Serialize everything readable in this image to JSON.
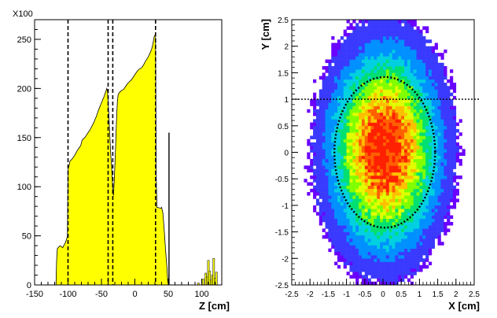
{
  "chart_data": [
    {
      "type": "histogram",
      "multiplier_label": "X100",
      "xlabel": "Z [cm]",
      "ylabel": "",
      "xlim": [
        -150,
        130
      ],
      "ylim": [
        0,
        270
      ],
      "x_ticks": [
        -150,
        -100,
        -50,
        0,
        50,
        100
      ],
      "y_ticks": [
        0,
        50,
        100,
        150,
        200,
        250
      ],
      "fill_color": "#ffff00",
      "outline_color": "#000000",
      "profile": [
        [
          -118,
          0
        ],
        [
          -117,
          25
        ],
        [
          -116,
          37
        ],
        [
          -112,
          40
        ],
        [
          -108,
          38
        ],
        [
          -104,
          43
        ],
        [
          -101,
          49
        ],
        [
          -100,
          117
        ],
        [
          -97,
          126
        ],
        [
          -93,
          129
        ],
        [
          -90,
          132
        ],
        [
          -87,
          136
        ],
        [
          -84,
          139
        ],
        [
          -81,
          142
        ],
        [
          -79,
          147
        ],
        [
          -77,
          149
        ],
        [
          -75,
          150
        ],
        [
          -73,
          152
        ],
        [
          -70,
          155
        ],
        [
          -67,
          158
        ],
        [
          -64,
          162
        ],
        [
          -61,
          166
        ],
        [
          -58,
          171
        ],
        [
          -55,
          177
        ],
        [
          -52,
          182
        ],
        [
          -49,
          187
        ],
        [
          -46,
          192
        ],
        [
          -44,
          196
        ],
        [
          -42,
          200
        ],
        [
          -41,
          197
        ],
        [
          -40,
          187
        ],
        [
          -39,
          175
        ],
        [
          -38,
          160
        ],
        [
          -37,
          145
        ],
        [
          -36,
          132
        ],
        [
          -35,
          122
        ],
        [
          -34,
          110
        ],
        [
          -33,
          96
        ],
        [
          -32,
          91
        ],
        [
          -31,
          104
        ],
        [
          -30,
          120
        ],
        [
          -29,
          138
        ],
        [
          -28,
          158
        ],
        [
          -27,
          176
        ],
        [
          -26,
          188
        ],
        [
          -25,
          194
        ],
        [
          -23,
          196
        ],
        [
          -20,
          198
        ],
        [
          -17,
          199
        ],
        [
          -14,
          202
        ],
        [
          -11,
          205
        ],
        [
          -8,
          207
        ],
        [
          -5,
          209
        ],
        [
          -2,
          212
        ],
        [
          1,
          215
        ],
        [
          4,
          218
        ],
        [
          7,
          220
        ],
        [
          10,
          221
        ],
        [
          13,
          224
        ],
        [
          16,
          228
        ],
        [
          19,
          231
        ],
        [
          22,
          235
        ],
        [
          25,
          240
        ],
        [
          27,
          245
        ],
        [
          29,
          253
        ],
        [
          31,
          255
        ],
        [
          32,
          110
        ],
        [
          33,
          79
        ],
        [
          39,
          78
        ],
        [
          40,
          79
        ],
        [
          42,
          73
        ],
        [
          44,
          55
        ],
        [
          46,
          35
        ],
        [
          48,
          18
        ],
        [
          49,
          5
        ],
        [
          50,
          0
        ]
      ],
      "spikes": [
        [
          51,
          155
        ],
        [
          95,
          2
        ],
        [
          102,
          6
        ],
        [
          106,
          12
        ],
        [
          108,
          8
        ],
        [
          110,
          25
        ],
        [
          112,
          14
        ],
        [
          114,
          5
        ],
        [
          116,
          10
        ],
        [
          118,
          27
        ],
        [
          120,
          7
        ],
        [
          122,
          13
        ]
      ],
      "dashed_lines_x": [
        -100,
        -40,
        -33,
        31
      ]
    },
    {
      "type": "heatmap",
      "xlabel": "X [cm]",
      "ylabel": "Y [cm]",
      "xlim": [
        -2.5,
        2.5
      ],
      "ylim": [
        -2.5,
        2.5
      ],
      "x_ticks": [
        -2.5,
        -2,
        -1.5,
        -1,
        -0.5,
        0,
        0.5,
        1,
        1.5,
        2,
        2.5
      ],
      "y_ticks": [
        -2.5,
        -2,
        -1.5,
        -1,
        -0.5,
        0,
        0.5,
        1,
        1.5,
        2,
        2.5
      ],
      "beam_center": [
        0.05,
        0.05
      ],
      "beam_sigma": [
        0.95,
        1.2
      ],
      "ellipse": {
        "center": [
          0.05,
          0.0
        ],
        "semi_axes": [
          1.38,
          1.42
        ]
      },
      "dashed_line_y": 1.0,
      "colormap": [
        "#6a00ff",
        "#3a3aff",
        "#0090ff",
        "#00d0e0",
        "#00e070",
        "#80ff00",
        "#e0ff00",
        "#ffc000",
        "#ff6000",
        "#ff2000"
      ]
    }
  ]
}
